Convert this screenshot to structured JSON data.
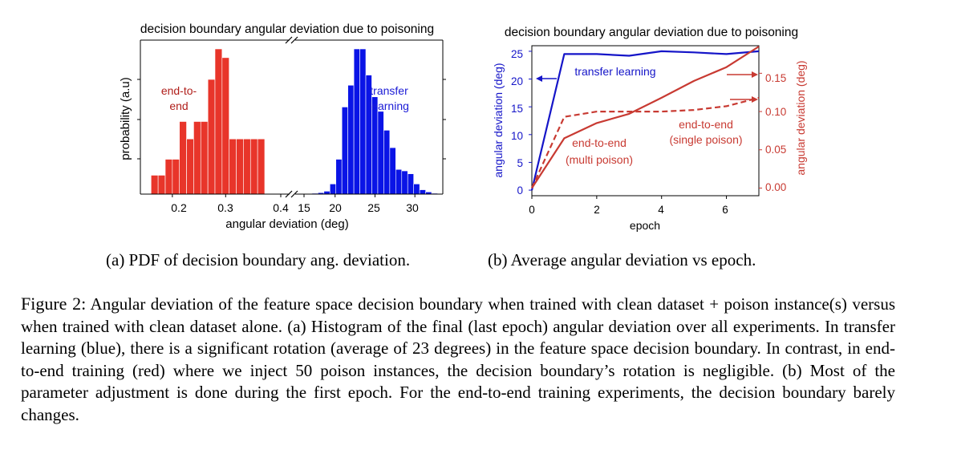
{
  "figure_a": {
    "title": "decision boundary angular deviation due to poisoning",
    "xlabel": "angular deviation (deg)",
    "ylabel": "probability (a.u)",
    "label_end_to_end": [
      "end-to-",
      "end"
    ],
    "label_transfer": [
      "transfer",
      "learning"
    ],
    "left_ticks": [
      "0.2",
      "0.3",
      "0.4"
    ],
    "right_ticks": [
      "15",
      "20",
      "25",
      "30"
    ],
    "colors": {
      "end_to_end": "#e8352a",
      "transfer": "#0a14e6",
      "label_red": "#b01e1a",
      "label_blue": "#1a1ad6"
    }
  },
  "figure_b": {
    "title": "decision boundary angular deviation due to poisoning",
    "xlabel": "epoch",
    "ylabel_left": "angular deviation (deg)",
    "ylabel_right": "angular deviation (deg)",
    "label_transfer": "transfer learning",
    "label_multi": [
      "end-to-end",
      "(multi poison)"
    ],
    "label_single": [
      "end-to-end",
      "(single poison)"
    ],
    "x_ticks": [
      "0",
      "2",
      "4",
      "6"
    ],
    "y_left_ticks": [
      "0",
      "5",
      "10",
      "15",
      "20",
      "25"
    ],
    "y_right_ticks": [
      "0.00",
      "0.05",
      "0.10",
      "0.15"
    ],
    "colors": {
      "blue": "#1515c8",
      "red": "#c83a32"
    }
  },
  "chart_data": [
    {
      "type": "bar",
      "panel": "a-left",
      "title": "decision boundary angular deviation due to poisoning",
      "xlabel": "angular deviation (deg)",
      "ylabel": "probability (a.u)",
      "xlim": [
        0.14,
        0.42
      ],
      "series": [
        {
          "name": "end-to-end",
          "bin_width": 0.0133,
          "x": [
            0.16,
            0.1733,
            0.1867,
            0.2,
            0.2133,
            0.2267,
            0.24,
            0.2533,
            0.2667,
            0.28,
            0.2933,
            0.3067,
            0.32,
            0.3333,
            0.3467,
            0.36
          ],
          "values": [
            0.13,
            0.13,
            0.24,
            0.24,
            0.5,
            0.38,
            0.5,
            0.5,
            0.79,
            1.0,
            0.94,
            0.38,
            0.38,
            0.38,
            0.38,
            0.38
          ]
        }
      ]
    },
    {
      "type": "bar",
      "panel": "a-right",
      "xlim": [
        15,
        33.5
      ],
      "series": [
        {
          "name": "transfer learning",
          "bin_width": 0.75,
          "x": [
            17.1,
            17.85,
            18.6,
            19.35,
            20.1,
            20.85,
            21.6,
            22.35,
            23.1,
            23.85,
            24.6,
            25.35,
            26.1,
            26.85,
            27.6,
            28.35,
            29.1,
            29.85,
            30.6,
            31.35,
            32.1
          ],
          "values": [
            0.005,
            0.01,
            0.02,
            0.07,
            0.24,
            0.6,
            0.75,
            1.0,
            1.0,
            0.82,
            0.67,
            0.57,
            0.44,
            0.32,
            0.17,
            0.16,
            0.14,
            0.07,
            0.03,
            0.015,
            0.005
          ]
        }
      ]
    },
    {
      "type": "line",
      "panel": "b",
      "title": "decision boundary angular deviation due to poisoning",
      "xlabel": "epoch",
      "ylabel": "angular deviation (deg)",
      "xlim": [
        0,
        7
      ],
      "ylim": [
        -1,
        26
      ],
      "y2label": "angular deviation (deg)",
      "y2lim": [
        -0.01,
        0.186
      ],
      "series": [
        {
          "name": "transfer learning",
          "axis": "left",
          "style": "solid",
          "x": [
            0,
            1,
            2,
            3,
            4,
            5,
            6,
            7
          ],
          "values": [
            0,
            24.5,
            24.5,
            24.2,
            25.0,
            24.8,
            24.5,
            25.0
          ]
        },
        {
          "name": "end-to-end (multi poison)",
          "axis": "right",
          "style": "solid",
          "x": [
            0,
            1,
            2,
            3,
            4,
            5,
            6,
            7
          ],
          "values": [
            0,
            0.065,
            0.085,
            0.097,
            0.118,
            0.14,
            0.158,
            0.185
          ]
        },
        {
          "name": "end-to-end (single poison)",
          "axis": "right",
          "style": "dashed",
          "x": [
            0,
            1,
            2,
            3,
            4,
            5,
            6,
            7
          ],
          "values": [
            0,
            0.093,
            0.1,
            0.1,
            0.1,
            0.102,
            0.107,
            0.118
          ]
        }
      ]
    }
  ],
  "subcaptions": {
    "a": "(a) PDF of decision boundary ang. deviation.",
    "b": "(b) Average angular deviation vs epoch."
  },
  "caption": {
    "label": "Figure 2:",
    "text": "Angular deviation of the feature space decision boundary when trained with clean dataset + poison instance(s) versus when trained with clean dataset alone. (a) Histogram of the final (last epoch) angular deviation over all experiments. In transfer learning (blue), there is a significant rotation (average of 23 degrees) in the feature space decision boundary. In contrast, in end-to-end training (red) where we inject 50 poison instances, the decision boundary’s rotation is negligible. (b) Most of the parameter adjustment is done during the first epoch. For the end-to-end training experiments, the decision boundary barely changes."
  }
}
